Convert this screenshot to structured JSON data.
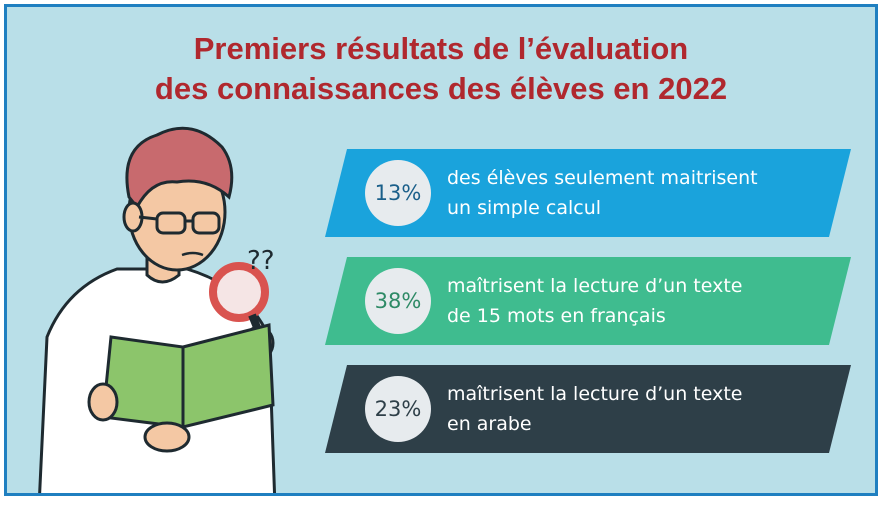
{
  "title": {
    "line1": "Premiers résultats de l’évaluation",
    "line2": "des connaissances des élèves en 2022"
  },
  "stats": [
    {
      "value": "13%",
      "line1": "des élèves seulement maitrisent",
      "line2": "un simple calcul",
      "color": "#1aa3dc",
      "value_color": "#1a5f8a"
    },
    {
      "value": "38%",
      "line1": "maîtrisent la lecture d’un texte",
      "line2": "de 15 mots en français",
      "color": "#3fbc8f",
      "value_color": "#2e8a66"
    },
    {
      "value": "23%",
      "line1": "maîtrisent la lecture d’un texte",
      "line2": "en arabe",
      "color": "#2e3f48",
      "value_color": "#2e3f48"
    }
  ],
  "illustration": {
    "question_marks": "??",
    "colors": {
      "book": "#8cc56b",
      "hair": "#c86a6e",
      "skin": "#f4c8a4",
      "shirt": "#ffffff",
      "outline": "#1e2a30",
      "lens": "#d9534f"
    }
  }
}
